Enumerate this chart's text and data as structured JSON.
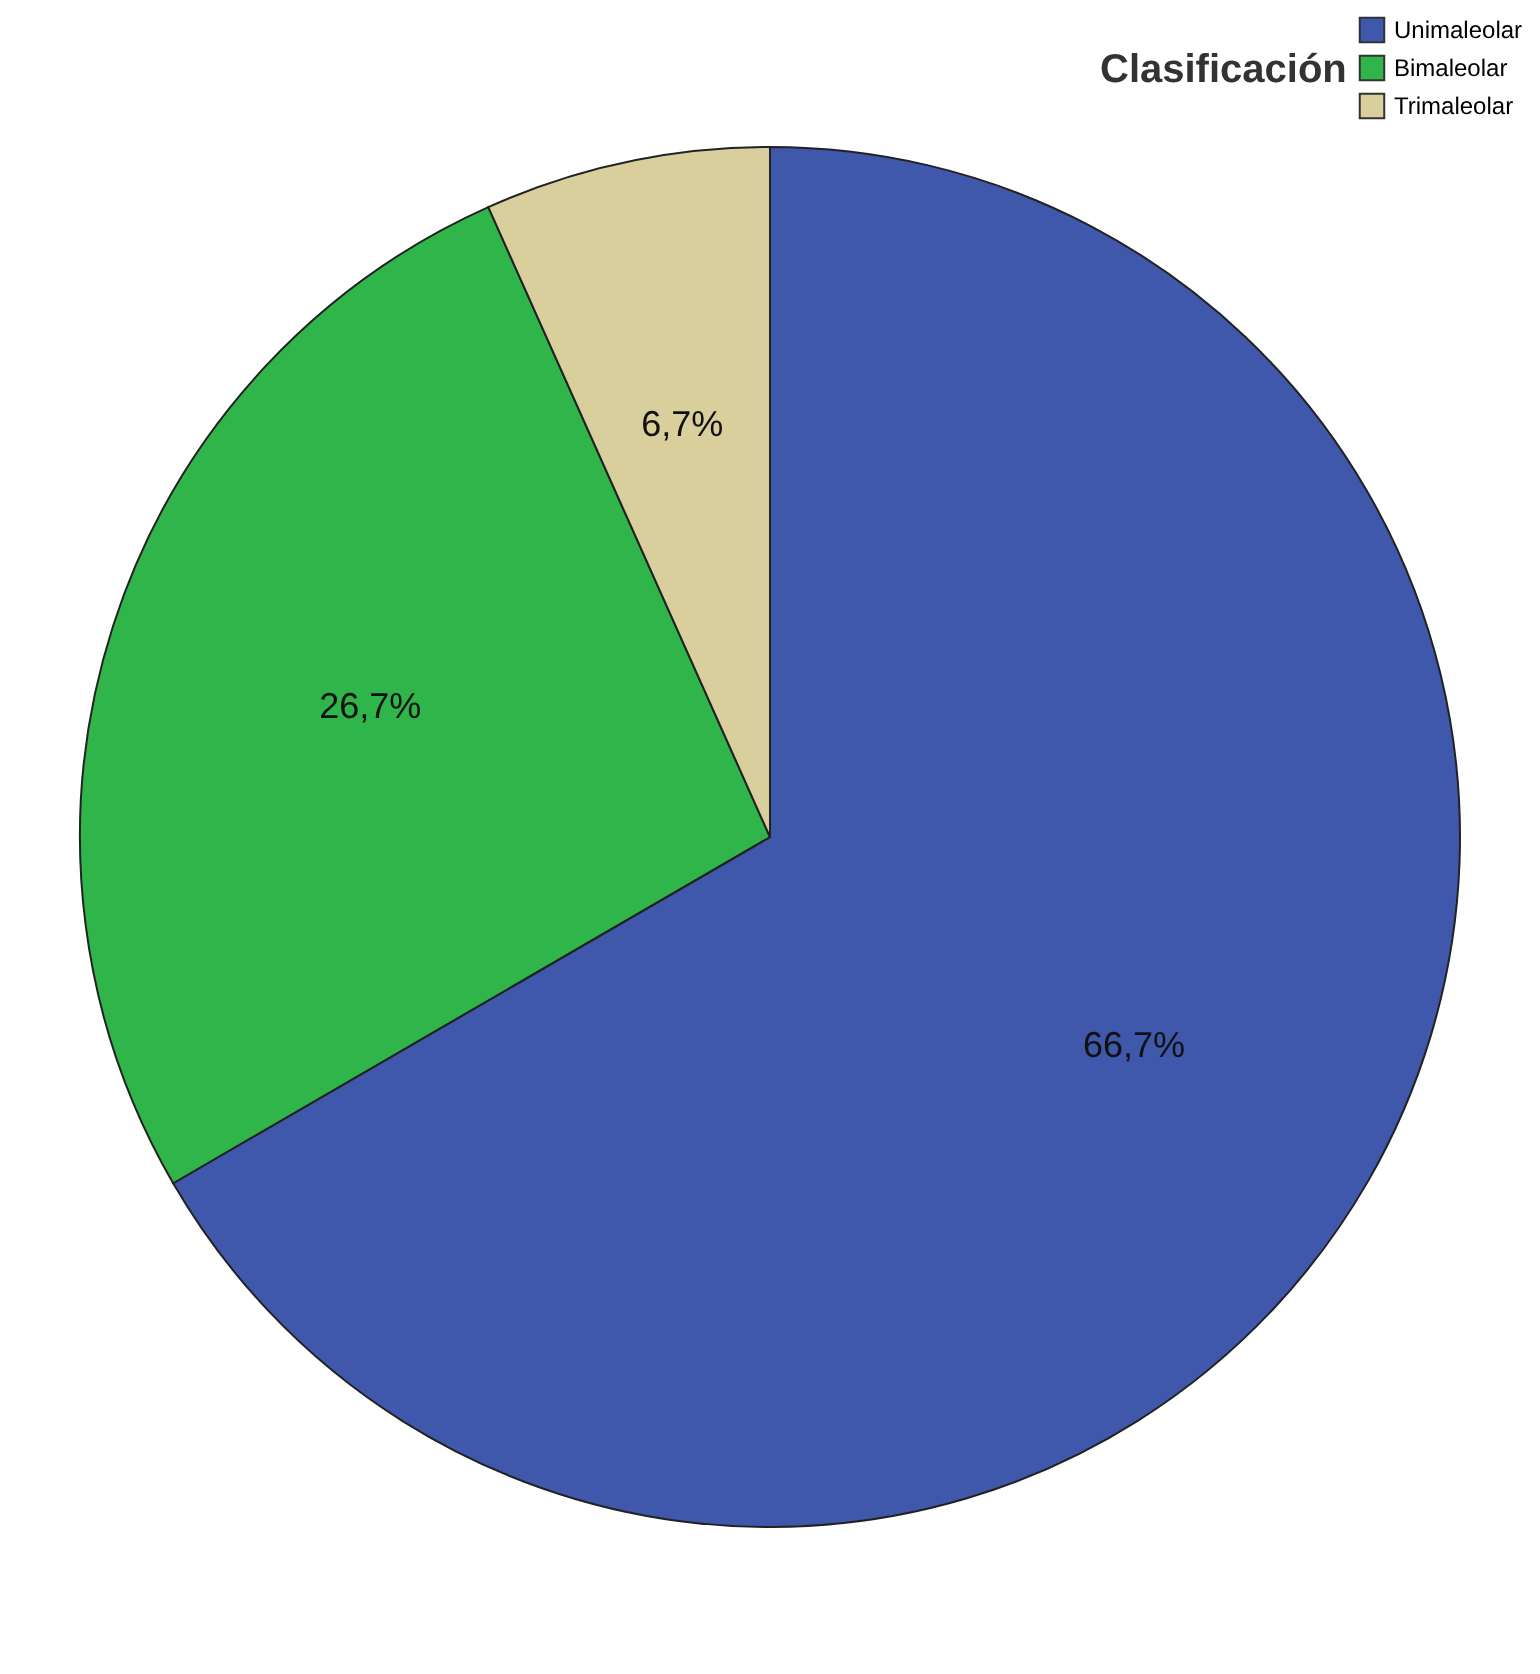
{
  "chart_data": {
    "type": "pie",
    "legend_title": "Clasificación",
    "legend": "top right",
    "categories": [
      "Unimaleolar",
      "Bimaleolar",
      "Trimaleolar"
    ],
    "values": [
      66.7,
      26.7,
      6.7
    ],
    "colors": [
      "#3f58ac",
      "#2fb54a",
      "#d8cf9c"
    ],
    "value_labels": [
      "66,7%",
      "26,7%",
      "6,7%"
    ]
  }
}
